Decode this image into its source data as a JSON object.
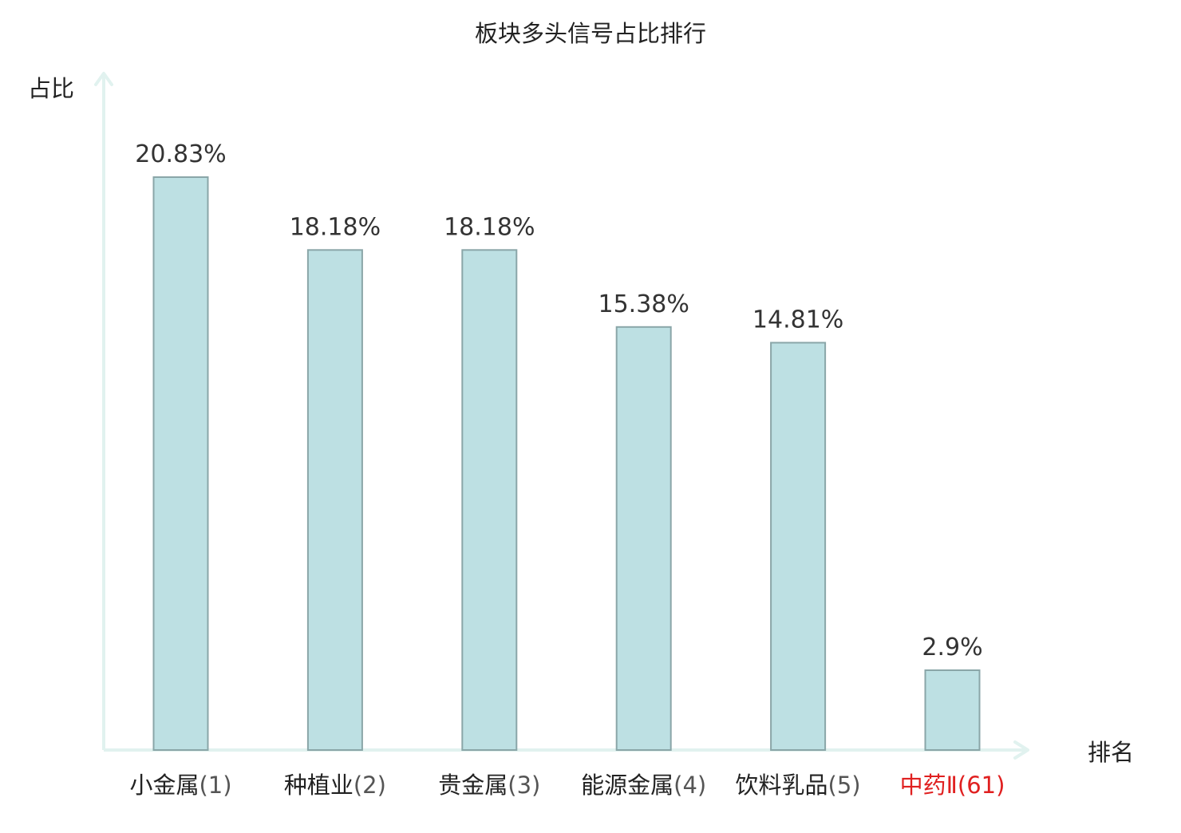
{
  "chart_data": {
    "type": "bar",
    "title": "板块多头信号占比排行",
    "ylabel": "占比",
    "xlabel": "排名",
    "categories": [
      {
        "name": "小金属",
        "rank": "(1)",
        "highlight": false
      },
      {
        "name": "种植业",
        "rank": "(2)",
        "highlight": false
      },
      {
        "name": "贵金属",
        "rank": "(3)",
        "highlight": false
      },
      {
        "name": "能源金属",
        "rank": "(4)",
        "highlight": false
      },
      {
        "name": "饮料乳品",
        "rank": "(5)",
        "highlight": false
      },
      {
        "name": "中药Ⅱ",
        "rank": "(61)",
        "highlight": true
      }
    ],
    "values": [
      20.83,
      18.18,
      18.18,
      15.38,
      14.81,
      2.9
    ],
    "value_labels": [
      "20.83%",
      "18.18%",
      "18.18%",
      "15.38%",
      "14.81%",
      "2.9%"
    ],
    "ylim": [
      0,
      24.6
    ],
    "grid": false,
    "legend": "none",
    "colors": {
      "bar_fill": "#bde0e3",
      "bar_stroke": "#8aa6a8",
      "axis": "#e1f2ef",
      "text": "#333333",
      "title": "#222222",
      "highlight_text": "#e02020"
    }
  }
}
